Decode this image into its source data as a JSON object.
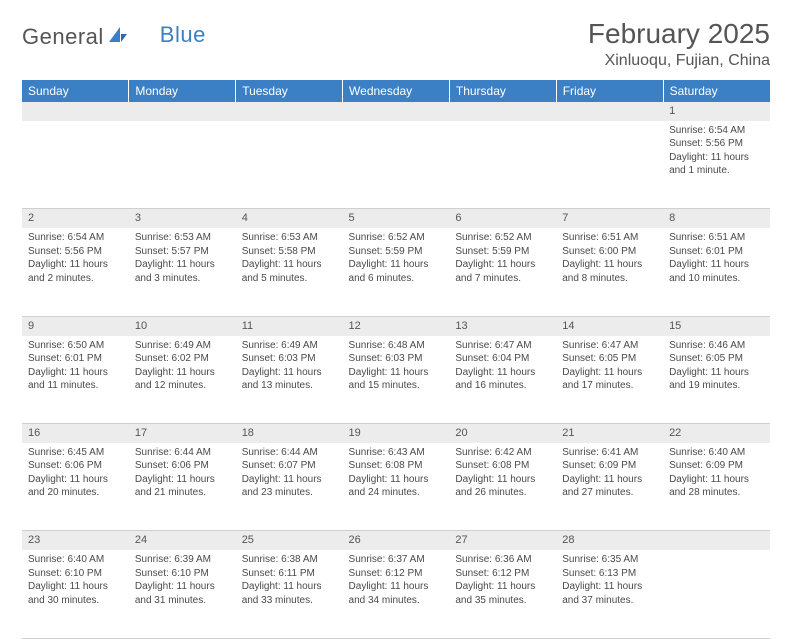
{
  "logo": {
    "text1": "General",
    "text2": "Blue"
  },
  "title": "February 2025",
  "location": "Xinluoqu, Fujian, China",
  "colors": {
    "header_bg": "#3b7fc4",
    "header_text": "#ffffff",
    "daynum_bg": "#ececec",
    "cell_border": "#cfcfcf",
    "body_text": "#4a4a4a",
    "title_text": "#555555"
  },
  "weekdays": [
    "Sunday",
    "Monday",
    "Tuesday",
    "Wednesday",
    "Thursday",
    "Friday",
    "Saturday"
  ],
  "weeks": [
    {
      "nums": [
        "",
        "",
        "",
        "",
        "",
        "",
        "1"
      ],
      "cells": [
        null,
        null,
        null,
        null,
        null,
        null,
        {
          "sunrise": "Sunrise: 6:54 AM",
          "sunset": "Sunset: 5:56 PM",
          "day1": "Daylight: 11 hours",
          "day2": "and 1 minute."
        }
      ]
    },
    {
      "nums": [
        "2",
        "3",
        "4",
        "5",
        "6",
        "7",
        "8"
      ],
      "cells": [
        {
          "sunrise": "Sunrise: 6:54 AM",
          "sunset": "Sunset: 5:56 PM",
          "day1": "Daylight: 11 hours",
          "day2": "and 2 minutes."
        },
        {
          "sunrise": "Sunrise: 6:53 AM",
          "sunset": "Sunset: 5:57 PM",
          "day1": "Daylight: 11 hours",
          "day2": "and 3 minutes."
        },
        {
          "sunrise": "Sunrise: 6:53 AM",
          "sunset": "Sunset: 5:58 PM",
          "day1": "Daylight: 11 hours",
          "day2": "and 5 minutes."
        },
        {
          "sunrise": "Sunrise: 6:52 AM",
          "sunset": "Sunset: 5:59 PM",
          "day1": "Daylight: 11 hours",
          "day2": "and 6 minutes."
        },
        {
          "sunrise": "Sunrise: 6:52 AM",
          "sunset": "Sunset: 5:59 PM",
          "day1": "Daylight: 11 hours",
          "day2": "and 7 minutes."
        },
        {
          "sunrise": "Sunrise: 6:51 AM",
          "sunset": "Sunset: 6:00 PM",
          "day1": "Daylight: 11 hours",
          "day2": "and 8 minutes."
        },
        {
          "sunrise": "Sunrise: 6:51 AM",
          "sunset": "Sunset: 6:01 PM",
          "day1": "Daylight: 11 hours",
          "day2": "and 10 minutes."
        }
      ]
    },
    {
      "nums": [
        "9",
        "10",
        "11",
        "12",
        "13",
        "14",
        "15"
      ],
      "cells": [
        {
          "sunrise": "Sunrise: 6:50 AM",
          "sunset": "Sunset: 6:01 PM",
          "day1": "Daylight: 11 hours",
          "day2": "and 11 minutes."
        },
        {
          "sunrise": "Sunrise: 6:49 AM",
          "sunset": "Sunset: 6:02 PM",
          "day1": "Daylight: 11 hours",
          "day2": "and 12 minutes."
        },
        {
          "sunrise": "Sunrise: 6:49 AM",
          "sunset": "Sunset: 6:03 PM",
          "day1": "Daylight: 11 hours",
          "day2": "and 13 minutes."
        },
        {
          "sunrise": "Sunrise: 6:48 AM",
          "sunset": "Sunset: 6:03 PM",
          "day1": "Daylight: 11 hours",
          "day2": "and 15 minutes."
        },
        {
          "sunrise": "Sunrise: 6:47 AM",
          "sunset": "Sunset: 6:04 PM",
          "day1": "Daylight: 11 hours",
          "day2": "and 16 minutes."
        },
        {
          "sunrise": "Sunrise: 6:47 AM",
          "sunset": "Sunset: 6:05 PM",
          "day1": "Daylight: 11 hours",
          "day2": "and 17 minutes."
        },
        {
          "sunrise": "Sunrise: 6:46 AM",
          "sunset": "Sunset: 6:05 PM",
          "day1": "Daylight: 11 hours",
          "day2": "and 19 minutes."
        }
      ]
    },
    {
      "nums": [
        "16",
        "17",
        "18",
        "19",
        "20",
        "21",
        "22"
      ],
      "cells": [
        {
          "sunrise": "Sunrise: 6:45 AM",
          "sunset": "Sunset: 6:06 PM",
          "day1": "Daylight: 11 hours",
          "day2": "and 20 minutes."
        },
        {
          "sunrise": "Sunrise: 6:44 AM",
          "sunset": "Sunset: 6:06 PM",
          "day1": "Daylight: 11 hours",
          "day2": "and 21 minutes."
        },
        {
          "sunrise": "Sunrise: 6:44 AM",
          "sunset": "Sunset: 6:07 PM",
          "day1": "Daylight: 11 hours",
          "day2": "and 23 minutes."
        },
        {
          "sunrise": "Sunrise: 6:43 AM",
          "sunset": "Sunset: 6:08 PM",
          "day1": "Daylight: 11 hours",
          "day2": "and 24 minutes."
        },
        {
          "sunrise": "Sunrise: 6:42 AM",
          "sunset": "Sunset: 6:08 PM",
          "day1": "Daylight: 11 hours",
          "day2": "and 26 minutes."
        },
        {
          "sunrise": "Sunrise: 6:41 AM",
          "sunset": "Sunset: 6:09 PM",
          "day1": "Daylight: 11 hours",
          "day2": "and 27 minutes."
        },
        {
          "sunrise": "Sunrise: 6:40 AM",
          "sunset": "Sunset: 6:09 PM",
          "day1": "Daylight: 11 hours",
          "day2": "and 28 minutes."
        }
      ]
    },
    {
      "nums": [
        "23",
        "24",
        "25",
        "26",
        "27",
        "28",
        ""
      ],
      "cells": [
        {
          "sunrise": "Sunrise: 6:40 AM",
          "sunset": "Sunset: 6:10 PM",
          "day1": "Daylight: 11 hours",
          "day2": "and 30 minutes."
        },
        {
          "sunrise": "Sunrise: 6:39 AM",
          "sunset": "Sunset: 6:10 PM",
          "day1": "Daylight: 11 hours",
          "day2": "and 31 minutes."
        },
        {
          "sunrise": "Sunrise: 6:38 AM",
          "sunset": "Sunset: 6:11 PM",
          "day1": "Daylight: 11 hours",
          "day2": "and 33 minutes."
        },
        {
          "sunrise": "Sunrise: 6:37 AM",
          "sunset": "Sunset: 6:12 PM",
          "day1": "Daylight: 11 hours",
          "day2": "and 34 minutes."
        },
        {
          "sunrise": "Sunrise: 6:36 AM",
          "sunset": "Sunset: 6:12 PM",
          "day1": "Daylight: 11 hours",
          "day2": "and 35 minutes."
        },
        {
          "sunrise": "Sunrise: 6:35 AM",
          "sunset": "Sunset: 6:13 PM",
          "day1": "Daylight: 11 hours",
          "day2": "and 37 minutes."
        },
        null
      ]
    }
  ]
}
